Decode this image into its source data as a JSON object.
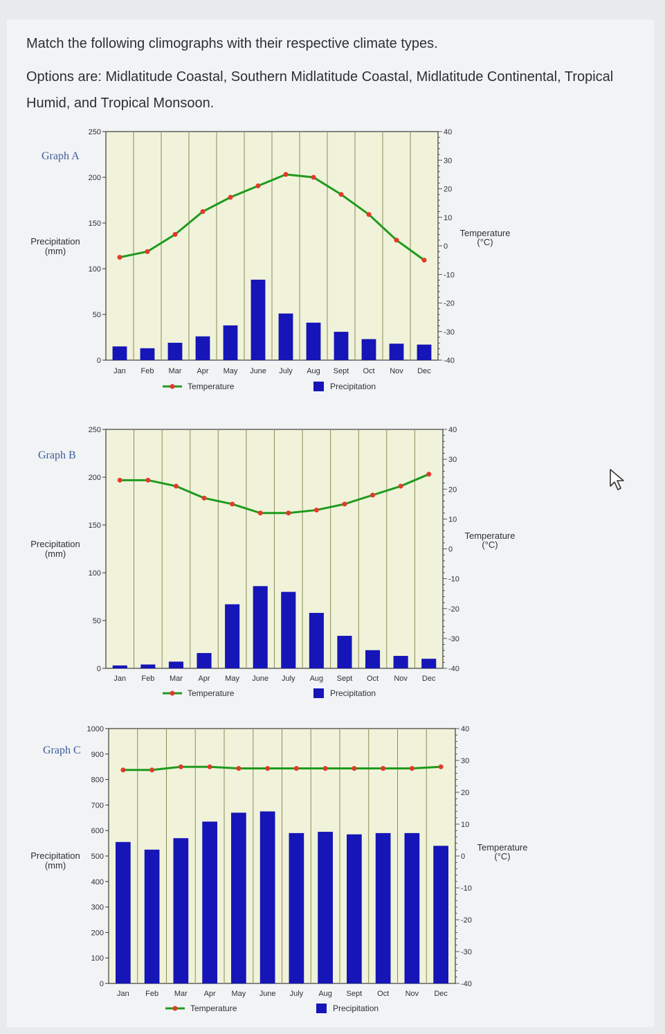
{
  "question": {
    "line1": "Match the following climographs with their respective climate types.",
    "line2": "Options are: Midlatitude Coastal, Southern Midlatitude Coastal, Midlatitude Continental, Tropical Humid, and Tropical Monsoon."
  },
  "colors": {
    "plot_bg": "#f0f3d9",
    "bar": "#1515b8",
    "line": "#1e9a1e",
    "marker": "#e23a2a",
    "grid": "#8a8a5a"
  },
  "chart_data": [
    {
      "type": "bar+line",
      "graph_label": "Graph A",
      "categories": [
        "Jan",
        "Feb",
        "Mar",
        "Apr",
        "May",
        "June",
        "July",
        "Aug",
        "Sept",
        "Oct",
        "Nov",
        "Dec"
      ],
      "precipitation": [
        15,
        13,
        19,
        26,
        38,
        88,
        51,
        41,
        31,
        23,
        18,
        17
      ],
      "temperature": [
        -4,
        -2,
        4,
        12,
        17,
        21,
        25,
        24,
        18,
        11,
        2,
        -5
      ],
      "ylabel_left": "Precipitation\n(mm)",
      "ylabel_right": "Temperature\n(°C)",
      "ylim_left": [
        0,
        250
      ],
      "yticks_left": [
        0,
        50,
        100,
        150,
        200,
        250
      ],
      "ylim_right": [
        -40,
        40
      ],
      "yticks_right": [
        "40",
        "30",
        "20",
        "10",
        "0",
        "-10",
        "-20",
        "-30",
        "-40"
      ],
      "legend": {
        "line": "Temperature",
        "bar": "Precipitation"
      }
    },
    {
      "type": "bar+line",
      "graph_label": "Graph B",
      "categories": [
        "Jan",
        "Feb",
        "Mar",
        "Apr",
        "May",
        "June",
        "July",
        "Aug",
        "Sept",
        "Oct",
        "Nov",
        "Dec"
      ],
      "precipitation": [
        3,
        4,
        7,
        16,
        67,
        86,
        80,
        58,
        34,
        19,
        13,
        10
      ],
      "temperature": [
        23,
        23,
        21,
        17,
        15,
        12,
        12,
        13,
        15,
        18,
        21,
        25
      ],
      "ylabel_left": "Precipitation\n(mm)",
      "ylabel_right": "Temperature\n(°C)",
      "ylim_left": [
        0,
        250
      ],
      "yticks_left": [
        0,
        50,
        100,
        150,
        200,
        250
      ],
      "ylim_right": [
        -40,
        40
      ],
      "yticks_right": [
        "40",
        "30",
        "20",
        "10",
        "0",
        "-10",
        "-20",
        "-30",
        "-40"
      ],
      "legend": {
        "line": "Temperature",
        "bar": "Precipitation"
      }
    },
    {
      "type": "bar+line",
      "graph_label": "Graph C",
      "categories": [
        "Jan",
        "Feb",
        "Mar",
        "Apr",
        "May",
        "June",
        "July",
        "Aug",
        "Sept",
        "Oct",
        "Nov",
        "Dec"
      ],
      "precipitation": [
        555,
        525,
        570,
        635,
        670,
        675,
        590,
        595,
        585,
        590,
        590,
        540
      ],
      "temperature": [
        27,
        27,
        28,
        28,
        27.5,
        27.5,
        27.5,
        27.5,
        27.5,
        27.5,
        27.5,
        28
      ],
      "ylabel_left": "Precipitation\n(mm)",
      "ylabel_right": "Temperature\n(°C)",
      "ylim_left": [
        0,
        1000
      ],
      "yticks_left": [
        0,
        100,
        200,
        300,
        400,
        500,
        600,
        700,
        800,
        900,
        1000
      ],
      "ylim_right": [
        -40,
        40
      ],
      "yticks_right": [
        "40",
        "30",
        "20",
        "10",
        "0",
        "-10",
        "-20",
        "-30",
        "-40"
      ],
      "legend": {
        "line": "Temperature",
        "bar": "Precipitation"
      }
    }
  ]
}
